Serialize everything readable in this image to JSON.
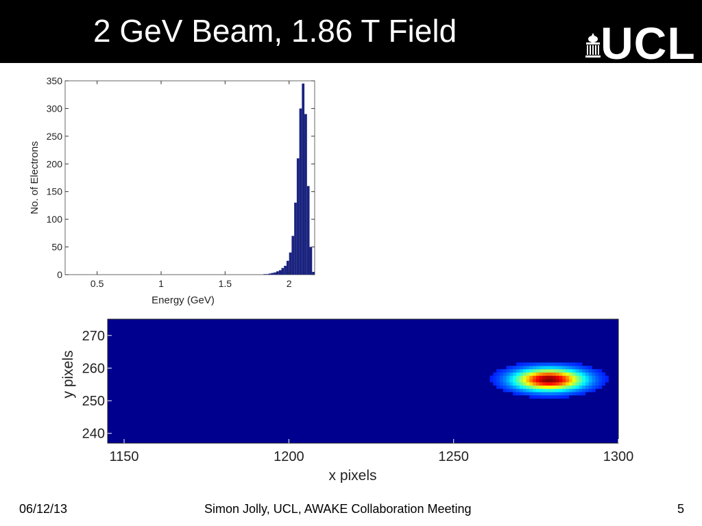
{
  "slide": {
    "title": "2 GeV Beam, 1.86 T Field",
    "logo_text": "UCL",
    "footer": {
      "date": "06/12/13",
      "center": "Simon Jolly, UCL, AWAKE Collaboration Meeting",
      "page": "5"
    }
  },
  "chart_data": [
    {
      "type": "bar",
      "subtype": "histogram",
      "xlabel": "Energy (GeV)",
      "ylabel": "No. of Electrons",
      "xlim": [
        0.25,
        2.2
      ],
      "ylim": [
        0,
        350
      ],
      "xticks": [
        0.5,
        1,
        1.5,
        2
      ],
      "xtick_labels": [
        "0.5",
        "1",
        "1.5",
        "2"
      ],
      "yticks": [
        0,
        50,
        100,
        150,
        200,
        250,
        300,
        350
      ],
      "ytick_labels": [
        "0",
        "50",
        "100",
        "150",
        "200",
        "250",
        "300",
        "350"
      ],
      "bar_color": "#1a237e",
      "bins": {
        "x": [
          1.8,
          1.82,
          1.84,
          1.86,
          1.88,
          1.9,
          1.92,
          1.94,
          1.96,
          1.98,
          2.0,
          2.02,
          2.04,
          2.06,
          2.08,
          2.1,
          2.12,
          2.14,
          2.16,
          2.18
        ],
        "y": [
          1,
          1,
          2,
          3,
          4,
          6,
          8,
          12,
          16,
          25,
          40,
          70,
          130,
          210,
          300,
          345,
          290,
          160,
          50,
          5
        ]
      }
    },
    {
      "type": "heatmap",
      "xlabel": "x pixels",
      "ylabel": "y pixels",
      "xlim": [
        1145,
        1300
      ],
      "ylim": [
        237,
        275
      ],
      "xticks": [
        1150,
        1200,
        1250,
        1300
      ],
      "xtick_labels": [
        "1150",
        "1200",
        "1250",
        "1300"
      ],
      "yticks": [
        240,
        250,
        260,
        270
      ],
      "ytick_labels": [
        "240",
        "250",
        "260",
        "270"
      ],
      "colormap": "jet",
      "background_color": "#00008f",
      "beam_spot": {
        "center_x": 1279,
        "center_y": 256.5,
        "sigma_x": 7,
        "sigma_y": 2.2,
        "peak_intensity": 1.0
      }
    }
  ]
}
